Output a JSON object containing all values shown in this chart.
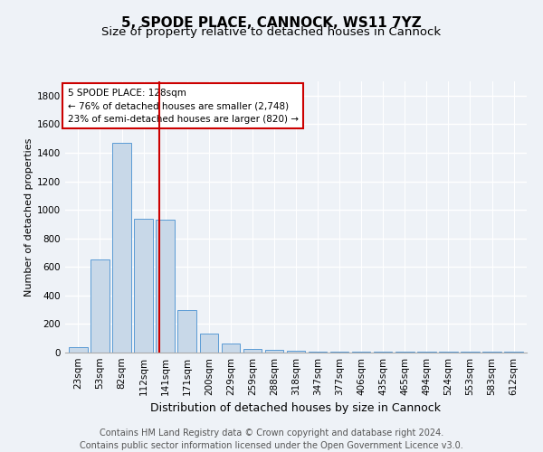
{
  "title1": "5, SPODE PLACE, CANNOCK, WS11 7YZ",
  "title2": "Size of property relative to detached houses in Cannock",
  "xlabel": "Distribution of detached houses by size in Cannock",
  "ylabel": "Number of detached properties",
  "categories": [
    "23sqm",
    "53sqm",
    "82sqm",
    "112sqm",
    "141sqm",
    "171sqm",
    "200sqm",
    "229sqm",
    "259sqm",
    "288sqm",
    "318sqm",
    "347sqm",
    "377sqm",
    "406sqm",
    "435sqm",
    "465sqm",
    "494sqm",
    "524sqm",
    "553sqm",
    "583sqm",
    "612sqm"
  ],
  "values": [
    40,
    650,
    1470,
    935,
    930,
    300,
    135,
    65,
    25,
    20,
    10,
    8,
    5,
    5,
    5,
    5,
    5,
    5,
    5,
    5,
    5
  ],
  "bar_color": "#c8d8e8",
  "bar_edge_color": "#5b9bd5",
  "vline_x": 3.72,
  "vline_color": "#cc0000",
  "annotation_text": "5 SPODE PLACE: 128sqm\n← 76% of detached houses are smaller (2,748)\n23% of semi-detached houses are larger (820) →",
  "annotation_box_color": "#cc0000",
  "ylim": [
    0,
    1900
  ],
  "yticks": [
    0,
    200,
    400,
    600,
    800,
    1000,
    1200,
    1400,
    1600,
    1800
  ],
  "footer1": "Contains HM Land Registry data © Crown copyright and database right 2024.",
  "footer2": "Contains public sector information licensed under the Open Government Licence v3.0.",
  "bg_color": "#eef2f7",
  "grid_color": "#ffffff",
  "title1_fontsize": 11,
  "title2_fontsize": 9.5,
  "xlabel_fontsize": 9,
  "ylabel_fontsize": 8,
  "tick_fontsize": 7.5,
  "footer_fontsize": 7
}
